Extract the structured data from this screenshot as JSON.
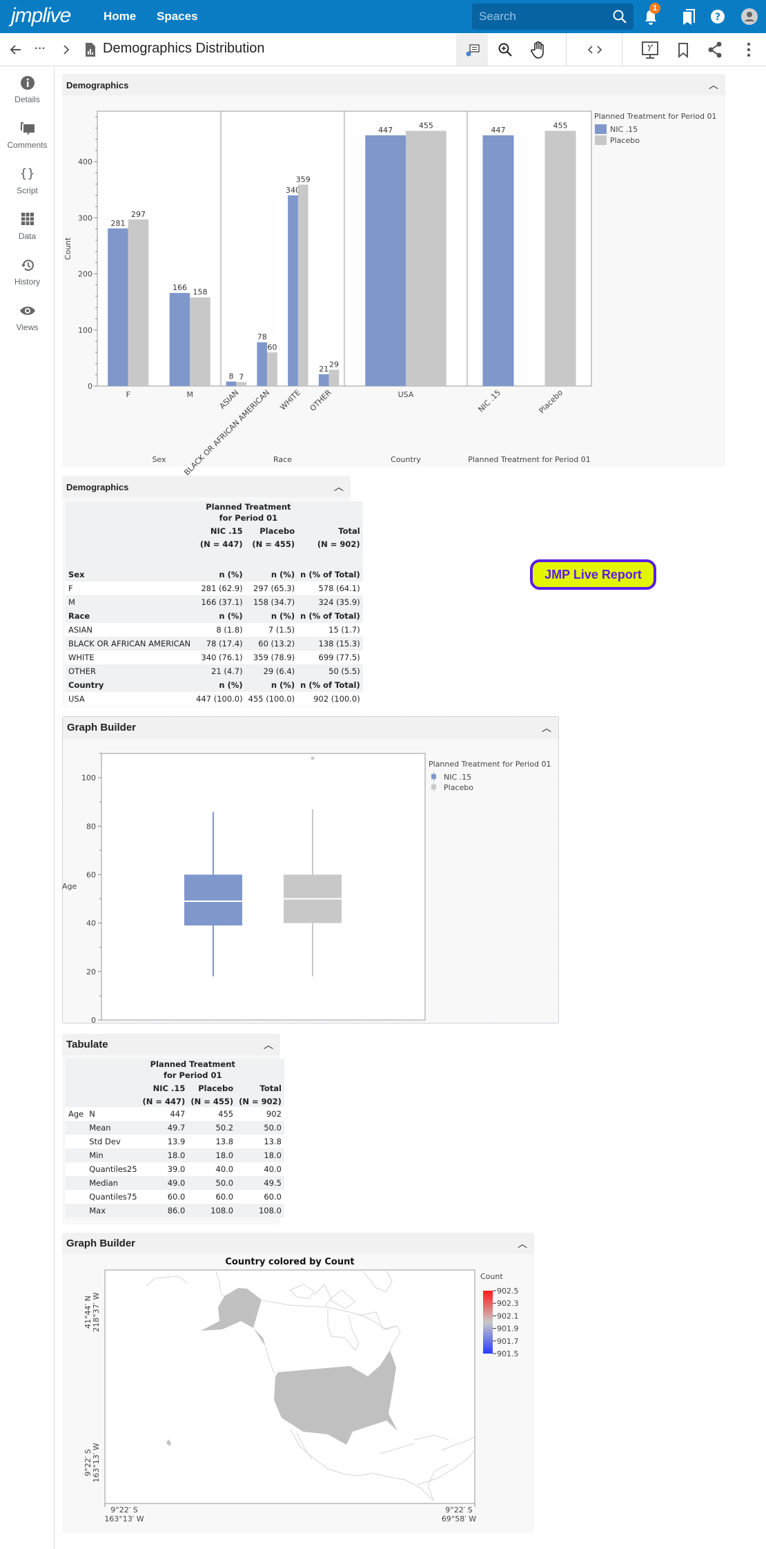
{
  "app": {
    "logo": "jmplive",
    "nav": [
      "Home",
      "Spaces"
    ],
    "search_placeholder": "Search",
    "notification_count": "1"
  },
  "toolbar": {
    "title": "Demographics Distribution",
    "icons": [
      "back-arrow-icon",
      "more-horizontal-icon",
      "chevron-right-icon",
      "report-icon",
      "annotate-icon",
      "zoom-icon",
      "pan-hand-icon",
      "code-icon",
      "present-icon",
      "bookmark-icon",
      "share-icon",
      "more-vertical-icon"
    ]
  },
  "sidebar": {
    "items": [
      {
        "label": "Details",
        "icon": "info-icon"
      },
      {
        "label": "Comments",
        "icon": "comments-icon"
      },
      {
        "label": "Script",
        "icon": "braces-icon"
      },
      {
        "label": "Data",
        "icon": "grid-icon"
      },
      {
        "label": "History",
        "icon": "history-icon"
      },
      {
        "label": "Views",
        "icon": "eye-icon"
      }
    ]
  },
  "colors": {
    "nic": "#7f97cb",
    "placebo": "#c8c8c8",
    "brand": "#0a7cc4",
    "badge": "#f47c20"
  },
  "panel1": {
    "title": "Demographics"
  },
  "panel2": {
    "title": "Demographics"
  },
  "panel3": {
    "title": "Graph Builder"
  },
  "panel4": {
    "title": "Tabulate"
  },
  "panel5": {
    "title": "Graph Builder"
  },
  "live_button": "JMP Live Report",
  "chart_data": [
    {
      "type": "bar",
      "ylabel": "Count",
      "ylim": [
        0,
        490
      ],
      "yticks": [
        0,
        100,
        200,
        300,
        400
      ],
      "legend": {
        "title": "Planned Treatment for Period 01",
        "placement": "right"
      },
      "series_names": [
        "NIC .15",
        "Placebo"
      ],
      "groups": [
        {
          "label": "Sex",
          "categories": [
            "F",
            "M"
          ],
          "values": [
            [
              281,
              297
            ],
            [
              166,
              158
            ]
          ],
          "rotated": false
        },
        {
          "label": "Race",
          "categories": [
            "ASIAN",
            "BLACK OR AFRICAN AMERICAN",
            "WHITE",
            "OTHER"
          ],
          "values": [
            [
              8,
              7
            ],
            [
              78,
              60
            ],
            [
              340,
              359
            ],
            [
              21,
              29
            ]
          ],
          "rotated": true
        },
        {
          "label": "Country",
          "categories": [
            "USA"
          ],
          "values": [
            [
              447,
              455
            ]
          ],
          "rotated": false
        },
        {
          "label": "Planned Treatment for Period 01",
          "categories": [
            "NIC .15",
            "Placebo"
          ],
          "values": [
            [
              447,
              null
            ],
            [
              null,
              455
            ]
          ],
          "rotated": true
        }
      ]
    },
    {
      "type": "box",
      "ylabel": "Age",
      "ylim": [
        0,
        110
      ],
      "yticks": [
        0,
        20,
        40,
        60,
        80,
        100
      ],
      "legend": {
        "title": "Planned Treatment for Period 01",
        "placement": "right"
      },
      "series": [
        {
          "name": "NIC .15",
          "min": 18,
          "q1": 39,
          "median": 49,
          "q3": 60,
          "whisker_max": 86,
          "outliers": []
        },
        {
          "name": "Placebo",
          "min": 18,
          "q1": 40,
          "median": 50,
          "q3": 60,
          "whisker_max": 87,
          "outliers": [
            108
          ]
        }
      ]
    },
    {
      "type": "map",
      "title": "Country colored by Count",
      "region": "USA",
      "value": 902,
      "legend": {
        "title": "Count",
        "ticks": [
          "902.5",
          "902.3",
          "902.1",
          "901.9",
          "901.7",
          "901.5"
        ],
        "colors": [
          "#ff1a1a",
          "#c8c8c8",
          "#2a3cff"
        ]
      },
      "axis_labels": {
        "y_top": [
          "41°44′ N",
          "218°37′ W"
        ],
        "y_bottom": [
          "9°22′ S",
          "163°13′ W"
        ],
        "x_left": [
          "9°22′ S",
          "163°13′ W"
        ],
        "x_right": [
          "9°22′ S",
          "69°58′ W"
        ]
      }
    }
  ],
  "demographics_table": {
    "header_group": [
      "Planned Treatment",
      "for Period 01"
    ],
    "columns": [
      {
        "name": "NIC .15",
        "n": "(N = 447)"
      },
      {
        "name": "Placebo",
        "n": "(N = 455)"
      },
      {
        "name": "Total",
        "n": "(N = 902)"
      }
    ],
    "sections": [
      {
        "label": "Sex",
        "stats": [
          "n (%)",
          "n (%)",
          "n (% of Total)"
        ],
        "rows": [
          [
            "F",
            "281 (62.9)",
            "297 (65.3)",
            "578 (64.1)"
          ],
          [
            "M",
            "166 (37.1)",
            "158 (34.7)",
            "324 (35.9)"
          ]
        ]
      },
      {
        "label": "Race",
        "stats": [
          "n (%)",
          "n (%)",
          "n (% of Total)"
        ],
        "rows": [
          [
            "ASIAN",
            "8 (1.8)",
            "7 (1.5)",
            "15 (1.7)"
          ],
          [
            "BLACK OR AFRICAN AMERICAN",
            "78 (17.4)",
            "60 (13.2)",
            "138 (15.3)"
          ],
          [
            "WHITE",
            "340 (76.1)",
            "359 (78.9)",
            "699 (77.5)"
          ],
          [
            "OTHER",
            "21 (4.7)",
            "29 (6.4)",
            "50 (5.5)"
          ]
        ]
      },
      {
        "label": "Country",
        "stats": [
          "n (%)",
          "n (%)",
          "n (% of Total)"
        ],
        "rows": [
          [
            "USA",
            "447 (100.0)",
            "455 (100.0)",
            "902 (100.0)"
          ]
        ]
      }
    ]
  },
  "tabulate_table": {
    "header_group": [
      "Planned Treatment",
      "for Period 01"
    ],
    "columns": [
      {
        "name": "NIC .15",
        "n": "(N = 447)"
      },
      {
        "name": "Placebo",
        "n": "(N = 455)"
      },
      {
        "name": "Total",
        "n": "(N = 902)"
      }
    ],
    "variable": "Age",
    "rows": [
      [
        "N",
        "447",
        "455",
        "902"
      ],
      [
        "Mean",
        "49.7",
        "50.2",
        "50.0"
      ],
      [
        "Std Dev",
        "13.9",
        "13.8",
        "13.8"
      ],
      [
        "Min",
        "18.0",
        "18.0",
        "18.0"
      ],
      [
        "Quantiles25",
        "39.0",
        "40.0",
        "40.0"
      ],
      [
        "Median",
        "49.0",
        "50.0",
        "49.5"
      ],
      [
        "Quantiles75",
        "60.0",
        "60.0",
        "60.0"
      ],
      [
        "Max",
        "86.0",
        "108.0",
        "108.0"
      ]
    ]
  }
}
